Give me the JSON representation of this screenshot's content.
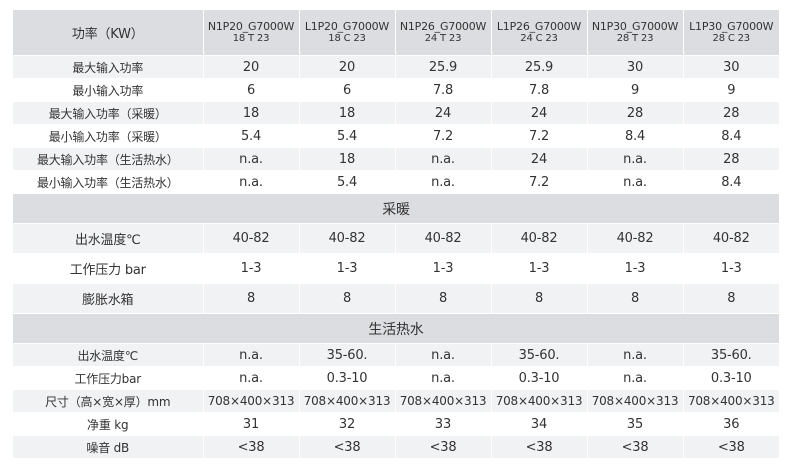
{
  "header": {
    "corner_label": "功率（KW）",
    "models": [
      {
        "name": "N1P20_G7000W",
        "variant": "18 T 23"
      },
      {
        "name": "L1P20_G7000W",
        "variant": "18 C 23"
      },
      {
        "name": "N1P26_G7000W",
        "variant": "24 T 23"
      },
      {
        "name": "L1P26_G7000W",
        "variant": "24 C 23"
      },
      {
        "name": "N1P30_G7000W",
        "variant": "28 T 23"
      },
      {
        "name": "L1P30_G7000W",
        "variant": "28 C 23"
      }
    ]
  },
  "power_rows": [
    {
      "label": "最大输入功率",
      "values": [
        "20",
        "20",
        "25.9",
        "25.9",
        "30",
        "30"
      ]
    },
    {
      "label": "最小输入功率",
      "values": [
        "6",
        "6",
        "7.8",
        "7.8",
        "9",
        "9"
      ]
    },
    {
      "label": "最大输入功率（采暖）",
      "values": [
        "18",
        "18",
        "24",
        "24",
        "28",
        "28"
      ]
    },
    {
      "label": "最小输入功率（采暖）",
      "values": [
        "5.4",
        "5.4",
        "7.2",
        "7.2",
        "8.4",
        "8.4"
      ]
    },
    {
      "label": "最大输入功率（生活热水）",
      "values": [
        "n.a.",
        "18",
        "n.a.",
        "24",
        "n.a.",
        "28"
      ]
    },
    {
      "label": "最小输入功率（生活热水）",
      "values": [
        "n.a.",
        "5.4",
        "n.a.",
        "7.2",
        "n.a.",
        "8.4"
      ]
    }
  ],
  "heating": {
    "section_label": "采暖",
    "rows": [
      {
        "label": "出水温度℃",
        "values": [
          "40-82",
          "40-82",
          "40-82",
          "40-82",
          "40-82",
          "40-82"
        ]
      },
      {
        "label": "工作压力 bar",
        "values": [
          "1-3",
          "1-3",
          "1-3",
          "1-3",
          "1-3",
          "1-3"
        ]
      },
      {
        "label": "膨胀水箱",
        "values": [
          "8",
          "8",
          "8",
          "8",
          "8",
          "8"
        ]
      }
    ]
  },
  "hot_water": {
    "section_label": "生活热水",
    "rows": [
      {
        "label": "出水温度℃",
        "values": [
          "n.a.",
          "35-60.",
          "n.a.",
          "35-60.",
          "n.a.",
          "35-60."
        ]
      },
      {
        "label": "工作压力bar",
        "values": [
          "n.a.",
          "0.3-10",
          "n.a.",
          "0.3-10",
          "n.a.",
          "0.3-10"
        ]
      },
      {
        "label": "尺寸（高×宽×厚）mm",
        "values": [
          "708×400×313",
          "708×400×313",
          "708×400×313",
          "708×400×313",
          "708×400×313",
          "708×400×313"
        ]
      },
      {
        "label": "净重 kg",
        "values": [
          "31",
          "32",
          "33",
          "34",
          "35",
          "36"
        ]
      },
      {
        "label": "噪音 dB",
        "values": [
          "<38",
          "<38",
          "<38",
          "<38",
          "<38",
          "<38"
        ]
      }
    ]
  }
}
